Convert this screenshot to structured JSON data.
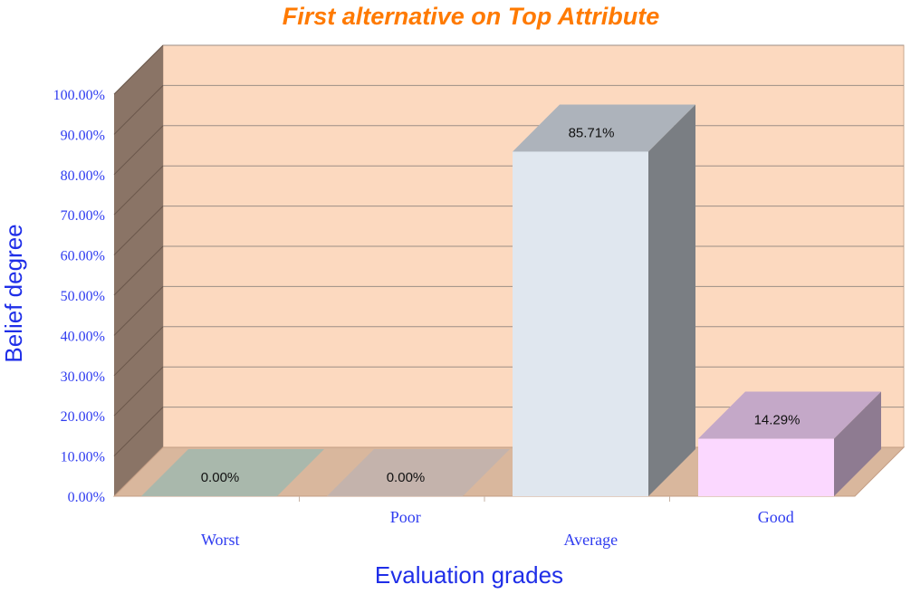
{
  "chart_data": {
    "type": "bar",
    "title": "First alternative on Top Attribute",
    "xlabel": "Evaluation grades",
    "ylabel": "Belief degree",
    "categories": [
      "Worst",
      "Poor",
      "Average",
      "Good"
    ],
    "values": [
      0.0,
      0.0,
      85.71,
      14.29
    ],
    "value_labels": [
      "0.00%",
      "0.00%",
      "85.71%",
      "14.29%"
    ],
    "ylim": [
      0,
      100
    ],
    "yticks": [
      0,
      10,
      20,
      30,
      40,
      50,
      60,
      70,
      80,
      90,
      100
    ],
    "ytick_labels": [
      "0.00%",
      "10.00%",
      "20.00%",
      "30.00%",
      "40.00%",
      "50.00%",
      "60.00%",
      "70.00%",
      "80.00%",
      "90.00%",
      "100.00%"
    ],
    "grid": true,
    "style": "3d",
    "colors": {
      "title": "#ff7a00",
      "axis_text": "#2f3cf0",
      "wall": "#fcd9bf",
      "side_wall": "#8a7466",
      "floor": "#d9b79d",
      "gridline": "#9c8e86",
      "bars": [
        {
          "front": "#a9b8ac",
          "top": "#a9b8ac",
          "side": "#8f9d92"
        },
        {
          "front": "#c4b3ac",
          "top": "#c4b3ac",
          "side": "#a99891"
        },
        {
          "front": "#e0e7ef",
          "top": "#adb3bb",
          "side": "#7a7e83"
        },
        {
          "front": "#fbd8ff",
          "top": "#c4a8c8",
          "side": "#8e7b91"
        }
      ]
    }
  }
}
